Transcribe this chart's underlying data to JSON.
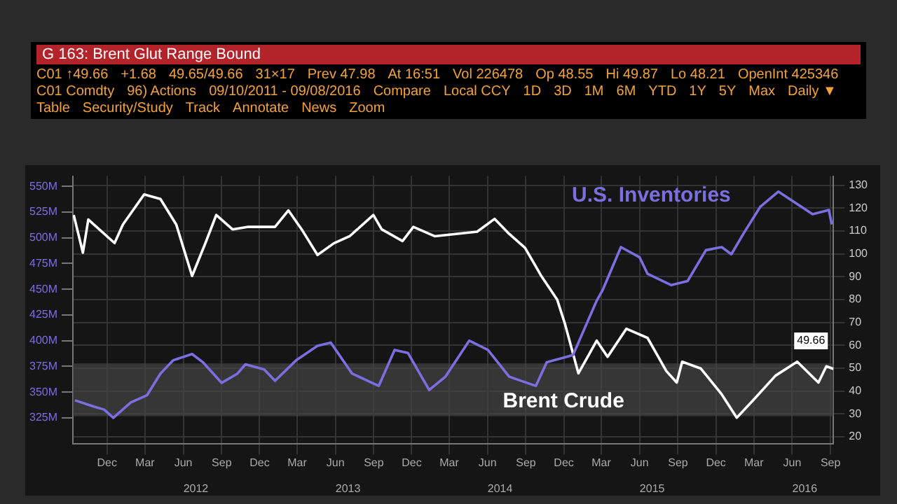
{
  "chart_data": {
    "type": "line",
    "title": "G 163: Brent Glut Range Bound",
    "annotations": [
      "C01 ↑49.66",
      "+1.68",
      "49.65/49.66",
      "31×17",
      "Prev 47.98",
      "At 16:51",
      "Vol 226478",
      "Op 48.55",
      "Hi 49.87",
      "Lo 48.21",
      "OpenInt 425346",
      "C01 Comdty",
      "96) Actions",
      "09/10/2011 - 09/08/2016",
      "Compare",
      "Local CCY",
      "1D",
      "3D",
      "1M",
      "6M",
      "YTD",
      "1Y",
      "5Y",
      "Max",
      "Daily ▼",
      "Table",
      "Security/Study",
      "Track",
      "Annotate",
      "News",
      "Zoom"
    ],
    "series": [
      {
        "name": "U.S. Inventories",
        "color": "#7b6fe0",
        "axis": "y2",
        "x": [
          "2011-09-15",
          "2011-10-30",
          "2011-11-24",
          "2011-12-16",
          "2012-01-27",
          "2012-03-06",
          "2012-04-07",
          "2012-05-08",
          "2012-06-22",
          "2012-07-18",
          "2012-09-01",
          "2012-10-09",
          "2012-10-28",
          "2012-12-12",
          "2013-01-07",
          "2013-02-27",
          "2013-04-19",
          "2013-05-21",
          "2013-07-11",
          "2013-09-13",
          "2013-10-21",
          "2013-11-22",
          "2014-01-12",
          "2014-02-20",
          "2014-04-18",
          "2014-06-02",
          "2014-07-23",
          "2014-09-25",
          "2014-10-21",
          "2014-12-23",
          "2015-02-18",
          "2015-03-04",
          "2015-04-17",
          "2015-06-01",
          "2015-06-20",
          "2015-08-16",
          "2015-09-24",
          "2015-11-07",
          "2015-12-15",
          "2016-01-07",
          "2016-02-05",
          "2016-03-16",
          "2016-04-29",
          "2016-07-20",
          "2016-08-28",
          "2016-09-04"
        ],
        "values": [
          342,
          336,
          333,
          325,
          340,
          347,
          368,
          381,
          387,
          379,
          359,
          368,
          377,
          372,
          361,
          381,
          395,
          398,
          368,
          356,
          391,
          388,
          352,
          365,
          400,
          391,
          365,
          356,
          379,
          386,
          439,
          449,
          491,
          481,
          465,
          454,
          458,
          488,
          491,
          484,
          504,
          530,
          545,
          523,
          527,
          513
        ]
      },
      {
        "name": "Brent Crude",
        "color": "#ffffff",
        "x": [
          "2011-09-12",
          "2011-10-04",
          "2011-10-17",
          "2011-12-19",
          "2012-01-08",
          "2012-02-28",
          "2012-04-07",
          "2012-05-15",
          "2012-06-22",
          "2012-07-24",
          "2012-08-19",
          "2012-09-27",
          "2012-11-04",
          "2013-01-07",
          "2013-02-08",
          "2013-03-12",
          "2013-04-19",
          "2013-05-28",
          "2013-07-05",
          "2013-08-31",
          "2013-09-20",
          "2013-11-09",
          "2013-12-05",
          "2014-01-25",
          "2014-03-17",
          "2014-05-07",
          "2014-06-18",
          "2014-07-23",
          "2014-08-30",
          "2014-10-08",
          "2014-11-15",
          "2014-12-04",
          "2015-01-05",
          "2015-02-18",
          "2015-03-16",
          "2015-04-30",
          "2015-06-20",
          "2015-08-04",
          "2015-08-29",
          "2015-09-11",
          "2015-10-26",
          "2015-12-15",
          "2016-01-20",
          "2016-03-02",
          "2016-04-22",
          "2016-06-13",
          "2016-08-03",
          "2016-08-22",
          "2016-09-08"
        ],
        "values": [
          117,
          100.5,
          115,
          104.7,
          112.8,
          126,
          124,
          112.8,
          90.3,
          104.7,
          117,
          110.7,
          111.8,
          111.8,
          119,
          110.7,
          99.5,
          104.6,
          107.7,
          117,
          110.7,
          105.6,
          111.8,
          107.7,
          108.7,
          109.7,
          115.3,
          108.7,
          102.6,
          90.3,
          80,
          69.2,
          47.7,
          62,
          54.9,
          67.2,
          63.2,
          48.7,
          43.7,
          52.8,
          49.8,
          38.5,
          28.3,
          36.5,
          46.7,
          52.8,
          43.7,
          50.8,
          49.66
        ],
        "value_labels": [
          null,
          null,
          null,
          null,
          null,
          null,
          null,
          null,
          null,
          null,
          null,
          null,
          null,
          null,
          null,
          null,
          null,
          null,
          null,
          null,
          null,
          null,
          null,
          null,
          null,
          null,
          null,
          null,
          null,
          null,
          null,
          null,
          null,
          null,
          null,
          null,
          null,
          null,
          null,
          null,
          null,
          null,
          null,
          null,
          null,
          null,
          null,
          null,
          "49.66"
        ]
      }
    ],
    "xlim": [
      "2011-09-10",
      "2016-09-08"
    ],
    "xticks": [
      {
        "value": "2011-12-01",
        "label": "Dec"
      },
      {
        "value": "2012-03-01",
        "label": "Mar"
      },
      {
        "value": "2012-06-01",
        "label": "Jun"
      },
      {
        "value": "2012-09-01",
        "label": "Sep"
      },
      {
        "value": "2012-12-01",
        "label": "Dec"
      },
      {
        "value": "2013-03-01",
        "label": "Mar"
      },
      {
        "value": "2013-06-01",
        "label": "Jun"
      },
      {
        "value": "2013-09-01",
        "label": "Sep"
      },
      {
        "value": "2013-12-01",
        "label": "Dec"
      },
      {
        "value": "2014-03-01",
        "label": "Mar"
      },
      {
        "value": "2014-06-01",
        "label": "Jun"
      },
      {
        "value": "2014-09-01",
        "label": "Sep"
      },
      {
        "value": "2014-12-01",
        "label": "Dec"
      },
      {
        "value": "2015-03-01",
        "label": "Mar"
      },
      {
        "value": "2015-06-01",
        "label": "Jun"
      },
      {
        "value": "2015-09-01",
        "label": "Sep"
      },
      {
        "value": "2015-12-01",
        "label": "Dec"
      },
      {
        "value": "2016-03-01",
        "label": "Mar"
      },
      {
        "value": "2016-06-01",
        "label": "Jun"
      },
      {
        "value": "2016-09-01",
        "label": "Sep"
      }
    ],
    "x2lim": [
      "2011-09-10",
      "2016-09-08"
    ],
    "x2ticks": [
      {
        "value": "2012-07-01",
        "label": "2012"
      },
      {
        "value": "2013-07-01",
        "label": "2013"
      },
      {
        "value": "2014-07-01",
        "label": "2014"
      },
      {
        "value": "2015-07-01",
        "label": "2015"
      },
      {
        "value": "2016-07-01",
        "label": "2016"
      }
    ],
    "ylim": [
      17,
      134
    ],
    "yticks": [
      20,
      30,
      40,
      50,
      60,
      70,
      80,
      90,
      100,
      110,
      120,
      130
    ],
    "y2lim": [
      300,
      560
    ],
    "y2ticks": [
      {
        "value": 325,
        "label": "325M"
      },
      {
        "value": 350,
        "label": "350M"
      },
      {
        "value": 375,
        "label": "375M"
      },
      {
        "value": 400,
        "label": "400M"
      },
      {
        "value": 425,
        "label": "425M"
      },
      {
        "value": 450,
        "label": "450M"
      },
      {
        "value": 475,
        "label": "475M"
      },
      {
        "value": 500,
        "label": "500M"
      },
      {
        "value": 525,
        "label": "525M"
      },
      {
        "value": 550,
        "label": "550M"
      }
    ],
    "bands": [
      {
        "axis": "y",
        "from": 29,
        "to": 52,
        "color": "#444444"
      }
    ],
    "grid": true,
    "marker": "none",
    "line_style": "solid"
  }
}
